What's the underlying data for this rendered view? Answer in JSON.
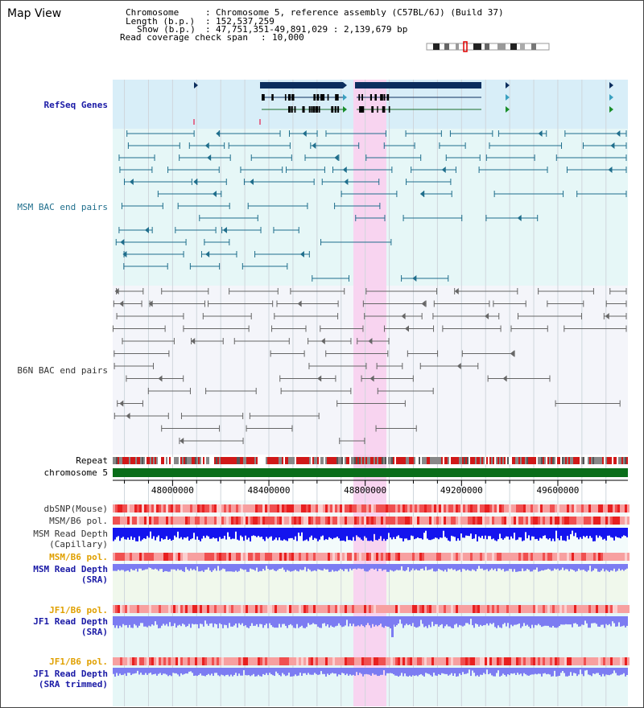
{
  "page": {
    "title": "Map View"
  },
  "info": {
    "chromosome_key": "Chromosome",
    "chromosome_val": "Chromosome 5, reference assembly (C57BL/6J) (Build 37)",
    "length_key": "Length (b.p.)",
    "length_val": "152,537,259",
    "show_key": "Show (b.p.)",
    "show_val": "47,751,351-49,891,029 : 2,139,679 bp",
    "span_key": "Read coverage check span",
    "span_val": "10,000"
  },
  "tracks": {
    "refseq": "RefSeq Genes",
    "msm_bac": "MSM BAC end pairs",
    "b6n_bac": "B6N BAC end pairs",
    "repeat": "Repeat",
    "chromosome": "chromosome 5",
    "dbsnp": "dbSNP(Mouse)",
    "msm_b6_pol": "MSM/B6 pol.",
    "msm_read_depth_cap": "MSM Read Depth\n(Capillary)",
    "msm_b6_pol_2": "MSM/B6 pol.",
    "msm_read_depth_sra": "MSM Read Depth\n(SRA)",
    "jf1_b6_pol": "JF1/B6 pol.",
    "jf1_read_depth_sra": "JF1 Read Depth\n(SRA)",
    "jf1_b6_pol_2": "JF1/B6 pol.",
    "jf1_read_depth_trim": "JF1 Read Depth\n(SRA trimmed)"
  },
  "axis": {
    "ticks": [
      "48000000",
      "48400000",
      "48800000",
      "49200000",
      "49600000"
    ],
    "tick_values": [
      48000000,
      48400000,
      48800000,
      49200000,
      49600000
    ],
    "start": 47751351,
    "end": 49891029
  },
  "highlight": {
    "start": 48751000,
    "end": 48888000
  },
  "colors": {
    "refseq_bg": "#d8eef8",
    "msm_bg": "#e6f7f7",
    "b6n_bg": "#f4f5fa",
    "highlight": "#f8d4f0",
    "gene_dark": "#0c2e5e",
    "msm_line": "#1f6e8c",
    "b6n_line": "#666666",
    "chrom_green": "#0a6e1a",
    "depth_blue": "#1414ee",
    "depth_light": "#7c7cf2",
    "pol_red": "#ee4040"
  }
}
